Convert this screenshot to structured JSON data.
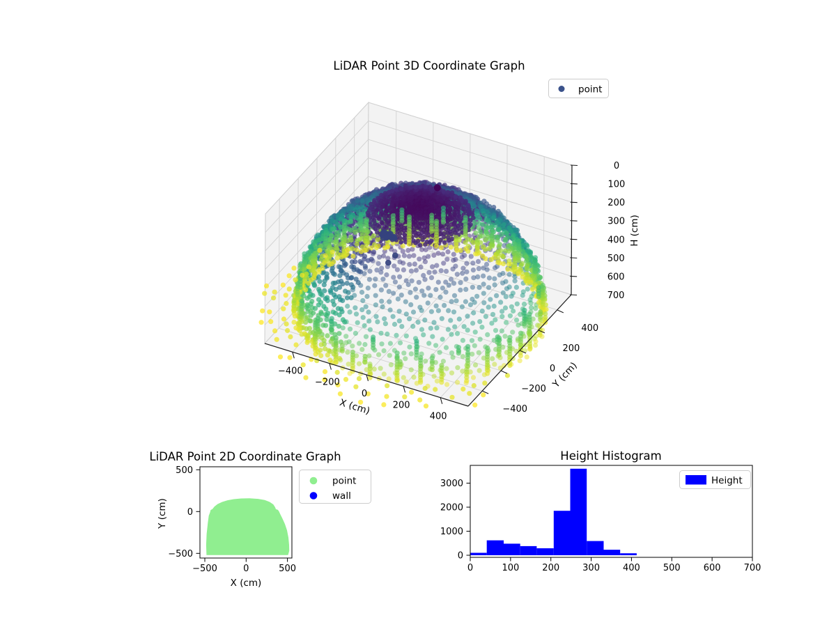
{
  "figure": {
    "background": "#ffffff"
  },
  "chart_data": [
    {
      "type": "scatter3d",
      "title": "LiDAR Point 3D Coordinate Graph",
      "xlabel": "X (cm)",
      "ylabel": "Y (cm)",
      "zlabel": "H (cm)",
      "legend": [
        {
          "label": "point",
          "color": "#3b528b"
        }
      ],
      "xlim": [
        -550,
        550
      ],
      "ylim": [
        -550,
        550
      ],
      "hlim": [
        0,
        700
      ],
      "h_axis_inverted": true,
      "xticks": [
        -400,
        -200,
        0,
        200,
        400
      ],
      "yticks": [
        -400,
        -200,
        0,
        200,
        400
      ],
      "hticks": [
        0,
        100,
        200,
        300,
        400,
        500,
        600,
        700
      ],
      "colormap": "viridis",
      "pane_color": "#f3f3f3",
      "grid_color": "#d2d2d2",
      "point_cloud": {
        "shape": "hemispherical dome of LiDAR returns, colored by height H",
        "radius_cm": 600,
        "center_xy": [
          20,
          -20
        ],
        "h_top_cm": 70,
        "h_rim_cm": 655,
        "rings": 24,
        "points_per_ring": 80,
        "marker_radius_px": 3.6,
        "alpha": 0.55,
        "dense_azimuth_deg": [
          30,
          255
        ],
        "cap_rings": 12,
        "rim_columns": {
          "azimuth_deg": [
            0,
            360
          ],
          "step_deg": 11,
          "max_stack": 10,
          "h_step_cm": 15
        },
        "outer_arcs": [
          {
            "radius_cm": 660,
            "azimuth_deg": [
              150,
              340
            ],
            "step_deg": 5.5,
            "h_cm": 660
          },
          {
            "radius_cm": 720,
            "azimuth_deg": [
              160,
              330
            ],
            "step_deg": 6.5,
            "h_cm": 668
          },
          {
            "radius_cm": 770,
            "azimuth_deg": [
              180,
              320
            ],
            "step_deg": 8.0,
            "h_cm": 675
          }
        ]
      },
      "wall_cluster": {
        "color": "#34427e",
        "center_xy": [
          -200,
          60
        ],
        "h_cm": 330,
        "count": 16,
        "outliers": [
          [
            -170,
            70,
            430
          ],
          [
            -200,
            55,
            470
          ]
        ]
      },
      "outlier_point": {
        "x": 0,
        "y": 200,
        "h": 100,
        "color": "#440256"
      }
    },
    {
      "type": "scatter",
      "title": "LiDAR Point 2D Coordinate Graph",
      "xlabel": "X (cm)",
      "ylabel": "Y (cm)",
      "legend": [
        {
          "label": "point",
          "color": "#90ee90"
        },
        {
          "label": "wall",
          "color": "#0000ff"
        }
      ],
      "xlim": [
        -560,
        550
      ],
      "ylim": [
        -560,
        540
      ],
      "xticks": [
        -500,
        0,
        500
      ],
      "yticks": [
        -500,
        0,
        500
      ],
      "region_color": "#90ee90",
      "region_outline": [
        [
          -480,
          -520
        ],
        [
          -484,
          -400
        ],
        [
          -478,
          -268
        ],
        [
          -463,
          -130
        ],
        [
          -452,
          -48
        ],
        [
          -436,
          -8
        ],
        [
          -430,
          18
        ],
        [
          -408,
          30
        ],
        [
          -384,
          60
        ],
        [
          -345,
          90
        ],
        [
          -290,
          115
        ],
        [
          -225,
          135
        ],
        [
          -150,
          148
        ],
        [
          -60,
          157
        ],
        [
          40,
          158
        ],
        [
          147,
          152
        ],
        [
          225,
          138
        ],
        [
          285,
          115
        ],
        [
          330,
          85
        ],
        [
          352,
          50
        ],
        [
          360,
          28
        ],
        [
          383,
          22
        ],
        [
          396,
          5
        ],
        [
          412,
          -30
        ],
        [
          440,
          -85
        ],
        [
          470,
          -150
        ],
        [
          495,
          -225
        ],
        [
          512,
          -310
        ],
        [
          520,
          -400
        ],
        [
          522,
          -470
        ],
        [
          508,
          -520
        ]
      ]
    },
    {
      "type": "histogram",
      "title": "Height Histogram",
      "legend": [
        {
          "label": "Height",
          "color": "#0000ff"
        }
      ],
      "bar_color": "#0000ff",
      "bin_edges": [
        0,
        41,
        83,
        124,
        165,
        207,
        248,
        289,
        331,
        372,
        413
      ],
      "counts": [
        100,
        620,
        480,
        380,
        290,
        1850,
        3600,
        590,
        230,
        80
      ],
      "xlim": [
        0,
        700
      ],
      "ylim": [
        0,
        3780
      ],
      "xticks": [
        0,
        100,
        200,
        300,
        400,
        500,
        600,
        700
      ],
      "yticks": [
        0,
        1000,
        2000,
        3000
      ]
    }
  ]
}
